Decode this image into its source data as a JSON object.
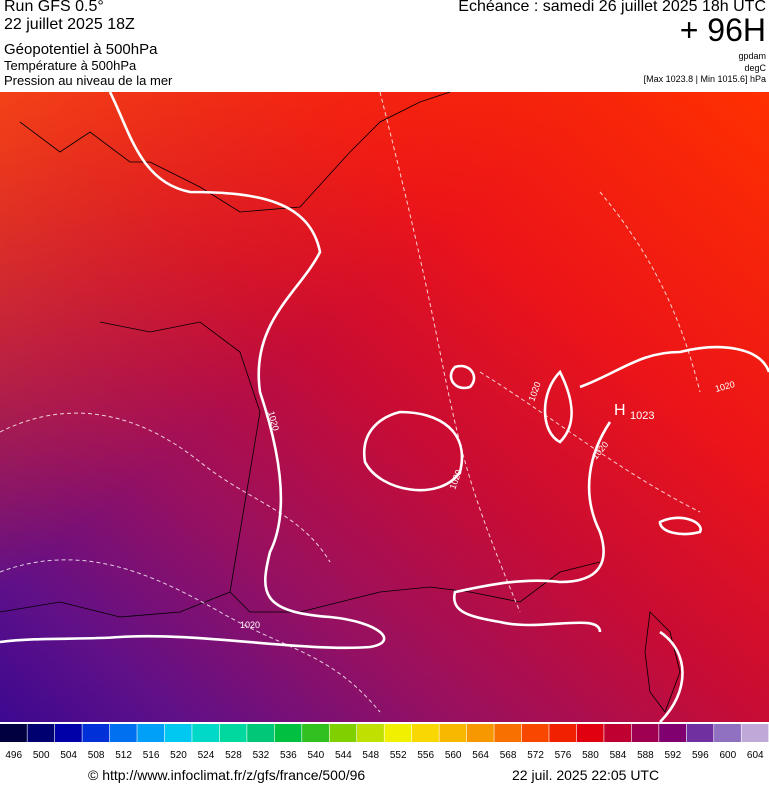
{
  "header": {
    "left": [
      "Run GFS 0.5°",
      "22 juillet 2025 18Z",
      "Géopotentiel à 500hPa",
      "Température à 500hPa",
      "Pression au niveau de la mer"
    ],
    "right": {
      "valid": "Echéance : samedi 26 juillet 2025 18h UTC",
      "lead": "+ 96H",
      "units": [
        "gpdam",
        "degC"
      ],
      "range": "[Max 1023.8 | Min 1015.6] hPa"
    }
  },
  "map": {
    "isobar_labels": [
      "1020",
      "1020",
      "1020",
      "1020",
      "1020",
      "1020"
    ],
    "high": {
      "symbol": "H",
      "value": "1023"
    }
  },
  "colorbar": {
    "labels": [
      496,
      500,
      504,
      508,
      512,
      516,
      520,
      524,
      528,
      532,
      536,
      540,
      544,
      548,
      552,
      556,
      560,
      564,
      568,
      572,
      576,
      580,
      584,
      588,
      592,
      596,
      600,
      604
    ],
    "colors": [
      "#000040",
      "#000070",
      "#0000a8",
      "#0030d8",
      "#0070f0",
      "#00a0f8",
      "#00c8f0",
      "#00d8c8",
      "#00d8a0",
      "#00c878",
      "#00c040",
      "#30c020",
      "#80d000",
      "#c0e000",
      "#f0f000",
      "#f8d800",
      "#f8b800",
      "#f89800",
      "#f87000",
      "#f84800",
      "#f02000",
      "#e00010",
      "#c00030",
      "#a00050",
      "#800070",
      "#7030a0",
      "#9070c0",
      "#c0a8d8"
    ]
  },
  "footer": {
    "source": "© http://www.infoclimat.fr/z/gfs/france/500/96",
    "generated": "22 juil. 2025 22:05 UTC"
  }
}
